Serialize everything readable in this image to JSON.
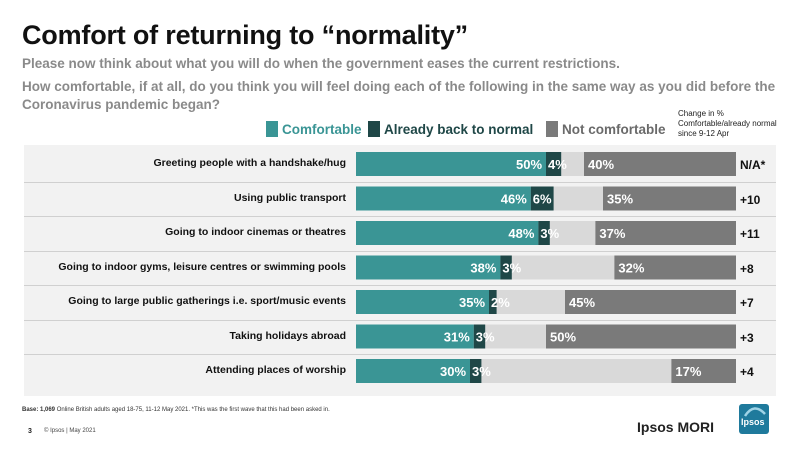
{
  "page": {
    "title": "Comfort of returning to “normality”",
    "subtitle1": "Please now think about what you will do when the government eases the current restrictions.",
    "subtitle2": "How comfortable, if at all, do you think you will feel doing each of the following in the same way as you did before the Coronavirus pandemic began?",
    "change_header": "Change in % Comfortable/already normal since 9-12 Apr",
    "footnote_label": "Base: 1,069",
    "footnote": " Online British adults aged 18-75,  11-12 May 2021. *This was the first wave that this had been asked in.",
    "page_number": "3",
    "copyright": "© Ipsos | May 2021",
    "brand": "Ipsos MORI",
    "logo_text": "Ipsos"
  },
  "colors": {
    "comfortable": "#3a9595",
    "already_normal": "#1f4747",
    "not_comfortable": "#7a7a7a",
    "middle_gap": "#d9d9d9"
  },
  "chart_data": {
    "type": "bar",
    "orientation": "horizontal",
    "stacked": true,
    "categories": [
      "Greeting people with a handshake/hug",
      "Using public transport",
      "Going to indoor cinemas or theatres",
      "Going to indoor gyms, leisure centres or swimming pools",
      "Going to large public gatherings i.e. sport/music events",
      "Taking holidays abroad",
      "Attending places of worship"
    ],
    "series": [
      {
        "name": "Comfortable",
        "values": [
          50,
          46,
          48,
          38,
          35,
          31,
          30
        ],
        "labels": [
          "50%",
          "46%",
          "48%",
          "38%",
          "35%",
          "31%",
          "30%"
        ]
      },
      {
        "name": "Already back to normal",
        "values": [
          4,
          6,
          3,
          3,
          2,
          3,
          3
        ],
        "labels": [
          "4%",
          "6%",
          "3%",
          "3%",
          "2%",
          "3%",
          "3%"
        ]
      },
      {
        "name": "Not comfortable",
        "values": [
          40,
          35,
          37,
          32,
          45,
          50,
          17
        ],
        "labels": [
          "40%",
          "35%",
          "37%",
          "32%",
          "45%",
          "50%",
          "17%"
        ]
      }
    ],
    "change": [
      "N/A*",
      "+10",
      "+11",
      "+8",
      "+7",
      "+3",
      "+4"
    ],
    "xlim": [
      0,
      100
    ],
    "legend": "top"
  }
}
